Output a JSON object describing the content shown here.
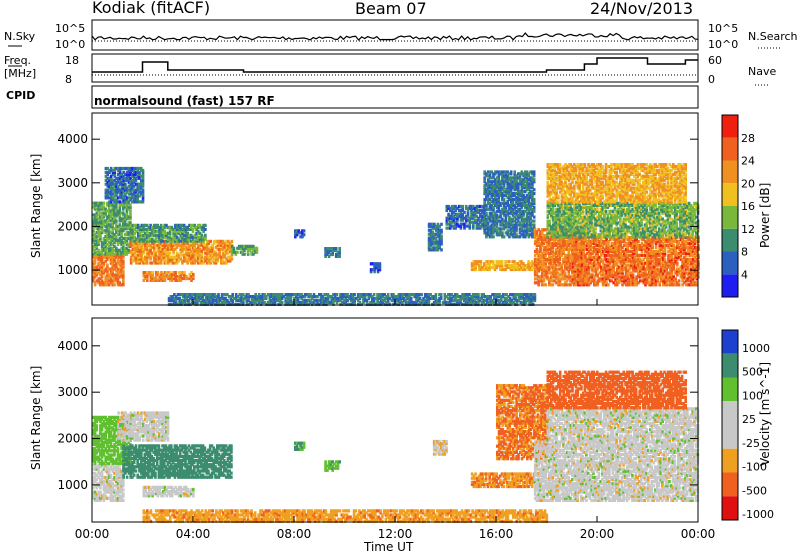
{
  "header": {
    "title": "Kodiak (fitACF)",
    "beam": "Beam 07",
    "date": "24/Nov/2013"
  },
  "panels": {
    "nsky_label": "N.Sky",
    "nsearch_label": "N.Search",
    "noise_ticks": [
      "10^5",
      "10^0"
    ],
    "freq_label": "Freq.",
    "freq_unit": "[MHz]",
    "freq_ticks": [
      "18",
      "8"
    ],
    "nave_label": "Nave",
    "nave_ticks": [
      "60",
      "0"
    ],
    "cpid_label": "CPID",
    "cpid_value": "normalsound (fast) 157 RF"
  },
  "colors": {
    "power_scale": [
      "#1e1ef0",
      "#2b5fc0",
      "#3c8c70",
      "#7ab83c",
      "#f0c020",
      "#f09020",
      "#f06020",
      "#f02010"
    ],
    "velocity_scale": [
      "#e01010",
      "#f06020",
      "#f0a020",
      "#c8c8c8",
      "#c8c8c8",
      "#60c030",
      "#3c8c70",
      "#1e40d0"
    ]
  },
  "chart_data": [
    {
      "type": "heatmap",
      "title": "Power",
      "xlabel": "Time UT",
      "ylabel": "Slant Range [km]",
      "colorbar_label": "Power [dB]",
      "colorbar_ticks": [
        4,
        8,
        12,
        16,
        20,
        24,
        28
      ],
      "x_ticks": [
        "00:00",
        "04:00",
        "08:00",
        "12:00",
        "16:00",
        "20:00",
        "00:00"
      ],
      "y_ticks": [
        1000,
        2000,
        3000,
        4000
      ],
      "xlim_hours": [
        0,
        24
      ],
      "ylim_km": [
        200,
        4600
      ],
      "regions": [
        {
          "t0": 0.0,
          "t1": 1.2,
          "r0": 700,
          "r1": 1400,
          "power_db": 26
        },
        {
          "t0": 0.0,
          "t1": 1.5,
          "r0": 1400,
          "r1": 2600,
          "power_db": 14
        },
        {
          "t0": 0.5,
          "t1": 2.0,
          "r0": 2600,
          "r1": 3400,
          "power_db": 9
        },
        {
          "t0": 1.5,
          "t1": 5.5,
          "r0": 1200,
          "r1": 1700,
          "power_db": 24
        },
        {
          "t0": 1.5,
          "t1": 4.5,
          "r0": 1700,
          "r1": 2100,
          "power_db": 13
        },
        {
          "t0": 2.0,
          "t1": 4.0,
          "r0": 800,
          "r1": 1000,
          "power_db": 25
        },
        {
          "t0": 5.5,
          "t1": 6.5,
          "r0": 1400,
          "r1": 1600,
          "power_db": 14
        },
        {
          "t0": 8.0,
          "t1": 8.4,
          "r0": 1800,
          "r1": 1950,
          "power_db": 9
        },
        {
          "t0": 9.2,
          "t1": 9.8,
          "r0": 1350,
          "r1": 1550,
          "power_db": 10
        },
        {
          "t0": 11.0,
          "t1": 11.4,
          "r0": 1000,
          "r1": 1200,
          "power_db": 8
        },
        {
          "t0": 13.3,
          "t1": 13.8,
          "r0": 1500,
          "r1": 2100,
          "power_db": 10
        },
        {
          "t0": 14.0,
          "t1": 15.5,
          "r0": 2000,
          "r1": 2500,
          "power_db": 9
        },
        {
          "t0": 15.0,
          "t1": 17.8,
          "r0": 1050,
          "r1": 1250,
          "power_db": 22
        },
        {
          "t0": 15.5,
          "t1": 17.5,
          "r0": 1800,
          "r1": 3300,
          "power_db": 10
        },
        {
          "t0": 17.5,
          "t1": 19.5,
          "r0": 700,
          "r1": 2000,
          "power_db": 26
        },
        {
          "t0": 19.0,
          "t1": 24.0,
          "r0": 700,
          "r1": 1800,
          "power_db": 27
        },
        {
          "t0": 18.0,
          "t1": 24.0,
          "r0": 1800,
          "r1": 2600,
          "power_db": 15
        },
        {
          "t0": 18.0,
          "t1": 23.5,
          "r0": 2600,
          "r1": 3500,
          "power_db": 22
        },
        {
          "t0": 3.0,
          "t1": 17.5,
          "r0": 250,
          "r1": 500,
          "power_db": 10
        }
      ]
    },
    {
      "type": "heatmap",
      "title": "Velocity",
      "xlabel": "Time UT",
      "ylabel": "Slant Range [km]",
      "colorbar_label": "Velocity [m s^-1]",
      "colorbar_ticks": [
        1000,
        500,
        100,
        25,
        -25,
        -100,
        -500,
        -1000
      ],
      "x_ticks": [
        "00:00",
        "04:00",
        "08:00",
        "12:00",
        "16:00",
        "20:00",
        "00:00"
      ],
      "y_ticks": [
        1000,
        2000,
        3000,
        4000
      ],
      "xlim_hours": [
        0,
        24
      ],
      "ylim_km": [
        200,
        4600
      ],
      "regions": [
        {
          "t0": 0.0,
          "t1": 1.2,
          "r0": 700,
          "r1": 1500,
          "velocity": 0
        },
        {
          "t0": 0.0,
          "t1": 1.5,
          "r0": 1500,
          "r1": 2500,
          "velocity": 60
        },
        {
          "t0": 1.2,
          "t1": 5.5,
          "r0": 1200,
          "r1": 1900,
          "velocity": 150
        },
        {
          "t0": 2.0,
          "t1": 4.0,
          "r0": 800,
          "r1": 1000,
          "velocity": 0
        },
        {
          "t0": 1.0,
          "t1": 3.0,
          "r0": 2000,
          "r1": 2600,
          "velocity": 0
        },
        {
          "t0": 8.0,
          "t1": 8.4,
          "r0": 1800,
          "r1": 1950,
          "velocity": 100
        },
        {
          "t0": 9.2,
          "t1": 9.8,
          "r0": 1350,
          "r1": 1550,
          "velocity": 80
        },
        {
          "t0": 13.5,
          "t1": 14.0,
          "r0": 1700,
          "r1": 2000,
          "velocity": -20
        },
        {
          "t0": 15.0,
          "t1": 17.5,
          "r0": 1000,
          "r1": 1300,
          "velocity": -90
        },
        {
          "t0": 16.0,
          "t1": 18.0,
          "r0": 1600,
          "r1": 3200,
          "velocity": -110
        },
        {
          "t0": 17.5,
          "t1": 24.0,
          "r0": 700,
          "r1": 2000,
          "velocity": 0
        },
        {
          "t0": 18.0,
          "t1": 24.0,
          "r0": 2000,
          "r1": 2700,
          "velocity": 0
        },
        {
          "t0": 18.0,
          "t1": 23.5,
          "r0": 2700,
          "r1": 3500,
          "velocity": -150
        },
        {
          "t0": 2.0,
          "t1": 18.0,
          "r0": 250,
          "r1": 500,
          "velocity": -80
        }
      ]
    }
  ]
}
